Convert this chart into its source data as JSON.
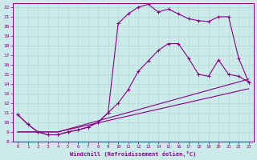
{
  "xlabel": "Windchill (Refroidissement éolien,°C)",
  "bg_color": "#cceaea",
  "line_color": "#880088",
  "grid_color": "#b0d8d8",
  "xlim": [
    -0.5,
    23.5
  ],
  "ylim": [
    8,
    22.4
  ],
  "xticks": [
    0,
    1,
    2,
    3,
    4,
    5,
    6,
    7,
    8,
    9,
    10,
    11,
    12,
    13,
    14,
    15,
    16,
    17,
    18,
    19,
    20,
    21,
    22,
    23
  ],
  "yticks": [
    8,
    9,
    10,
    11,
    12,
    13,
    14,
    15,
    16,
    17,
    18,
    19,
    20,
    21,
    22
  ],
  "curve1_x": [
    0,
    1,
    2,
    3,
    4,
    5,
    6,
    7,
    8,
    9,
    10,
    11,
    12,
    13,
    14,
    15,
    16,
    17,
    18,
    19,
    20,
    21,
    22,
    23
  ],
  "curve1_y": [
    10.8,
    9.8,
    9.0,
    8.7,
    8.7,
    9.0,
    9.2,
    9.5,
    10.0,
    11.0,
    12.0,
    13.4,
    15.3,
    16.4,
    17.5,
    18.2,
    18.2,
    16.7,
    15.0,
    14.8,
    16.5,
    15.0,
    14.8,
    14.2
  ],
  "curve2_x": [
    0,
    1,
    2,
    3,
    4,
    5,
    6,
    7,
    8,
    9,
    10,
    11,
    12,
    13,
    14,
    15,
    16,
    17,
    18,
    19,
    20,
    21,
    22,
    23
  ],
  "curve2_y": [
    10.8,
    9.8,
    9.0,
    8.7,
    8.7,
    9.0,
    9.2,
    9.5,
    10.0,
    11.0,
    20.3,
    21.3,
    22.0,
    22.3,
    21.5,
    21.8,
    21.3,
    20.8,
    20.6,
    20.5,
    21.0,
    21.0,
    16.7,
    14.2
  ],
  "curve3_x": [
    0,
    4,
    23
  ],
  "curve3_y": [
    9.0,
    9.0,
    14.5
  ],
  "curve4_x": [
    0,
    4,
    23
  ],
  "curve4_y": [
    9.0,
    9.0,
    13.5
  ]
}
